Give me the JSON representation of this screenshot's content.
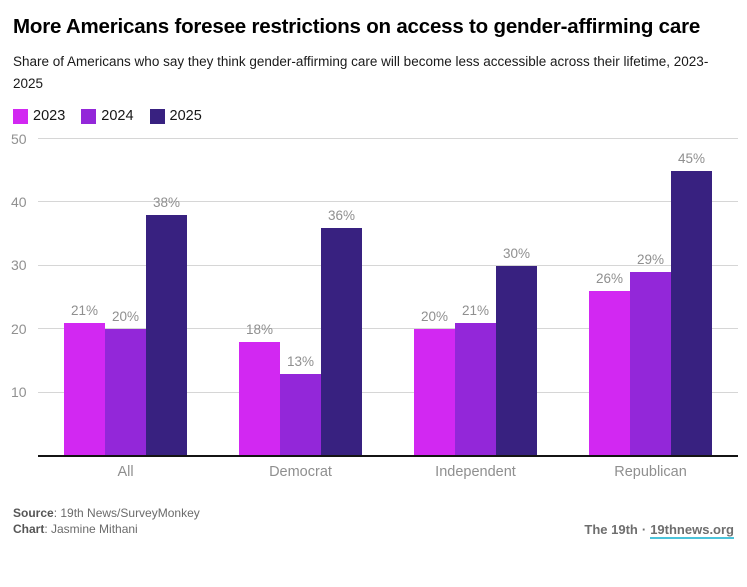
{
  "chart_data": {
    "type": "bar",
    "title": "More Americans foresee restrictions on access to gender-affirming care",
    "subtitle": "Share of Americans who say they think gender-affirming care will become less accessible across their lifetime, 2023-2025",
    "categories": [
      "All",
      "Democrat",
      "Independent",
      "Republican"
    ],
    "series": [
      {
        "name": "2023",
        "color": "#d228f2",
        "values": [
          21,
          18,
          20,
          26
        ]
      },
      {
        "name": "2024",
        "color": "#9327d9",
        "values": [
          20,
          13,
          21,
          29
        ]
      },
      {
        "name": "2025",
        "color": "#382180",
        "values": [
          38,
          36,
          30,
          45
        ]
      }
    ],
    "value_suffix": "%",
    "y_ticks": [
      10,
      20,
      30,
      40,
      50
    ],
    "ylim": [
      0,
      50
    ],
    "xlabel": "",
    "ylabel": "",
    "grid": true,
    "legend_position": "top-left",
    "grid_color": "#d6d6d6",
    "axis_color": "#141414",
    "label_color": "#8f8f8f"
  },
  "footer": {
    "source_label": "Source",
    "source_text": ": 19th News/SurveyMonkey",
    "chart_label": "Chart",
    "chart_text": ": Jasmine Mithani",
    "brand": "The 19th",
    "separator": "·",
    "link": "19thnews.org"
  }
}
